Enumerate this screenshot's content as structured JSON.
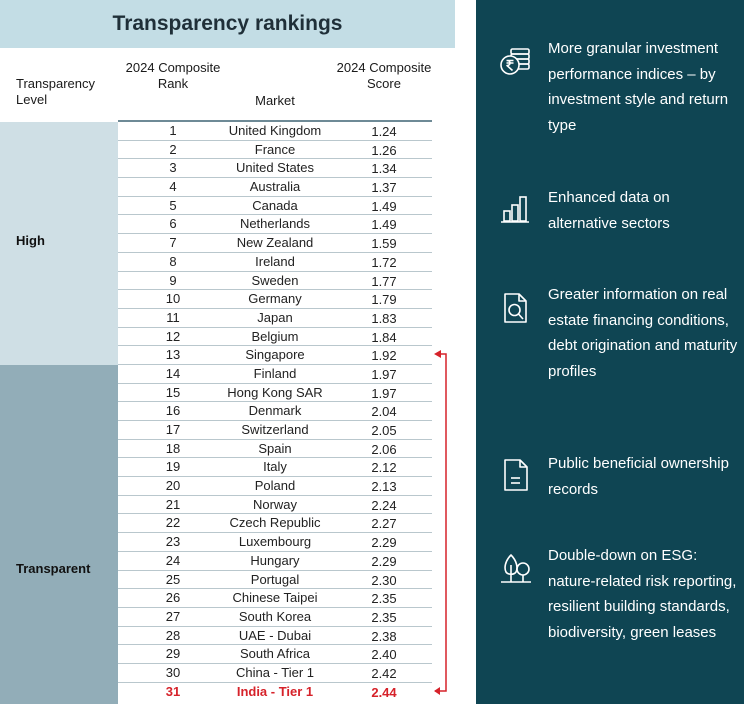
{
  "title": "Transparency rankings",
  "headers": {
    "level": "Transparency Level",
    "rank": "2024 Composite Rank",
    "market": "Market",
    "score": "2024 Composite Score"
  },
  "levels": {
    "high": "High",
    "transparent": "Transparent"
  },
  "rows": [
    {
      "rank": "1",
      "market": "United Kingdom",
      "score": "1.24"
    },
    {
      "rank": "2",
      "market": "France",
      "score": "1.26"
    },
    {
      "rank": "3",
      "market": "United States",
      "score": "1.34"
    },
    {
      "rank": "4",
      "market": "Australia",
      "score": "1.37"
    },
    {
      "rank": "5",
      "market": "Canada",
      "score": "1.49"
    },
    {
      "rank": "6",
      "market": "Netherlands",
      "score": "1.49"
    },
    {
      "rank": "7",
      "market": "New Zealand",
      "score": "1.59"
    },
    {
      "rank": "8",
      "market": "Ireland",
      "score": "1.72"
    },
    {
      "rank": "9",
      "market": "Sweden",
      "score": "1.77"
    },
    {
      "rank": "10",
      "market": "Germany",
      "score": "1.79"
    },
    {
      "rank": "11",
      "market": "Japan",
      "score": "1.83"
    },
    {
      "rank": "12",
      "market": "Belgium",
      "score": "1.84"
    },
    {
      "rank": "13",
      "market": "Singapore",
      "score": "1.92"
    },
    {
      "rank": "14",
      "market": "Finland",
      "score": "1.97"
    },
    {
      "rank": "15",
      "market": "Hong Kong SAR",
      "score": "1.97"
    },
    {
      "rank": "16",
      "market": "Denmark",
      "score": "2.04"
    },
    {
      "rank": "17",
      "market": "Switzerland",
      "score": "2.05"
    },
    {
      "rank": "18",
      "market": "Spain",
      "score": "2.06"
    },
    {
      "rank": "19",
      "market": "Italy",
      "score": "2.12"
    },
    {
      "rank": "20",
      "market": "Poland",
      "score": "2.13"
    },
    {
      "rank": "21",
      "market": "Norway",
      "score": "2.24"
    },
    {
      "rank": "22",
      "market": "Czech Republic",
      "score": "2.27"
    },
    {
      "rank": "23",
      "market": "Luxembourg",
      "score": "2.29"
    },
    {
      "rank": "24",
      "market": "Hungary",
      "score": "2.29"
    },
    {
      "rank": "25",
      "market": "Portugal",
      "score": "2.30"
    },
    {
      "rank": "26",
      "market": "Chinese Taipei",
      "score": "2.35"
    },
    {
      "rank": "27",
      "market": "South Korea",
      "score": "2.35"
    },
    {
      "rank": "28",
      "market": "UAE - Dubai",
      "score": "2.38"
    },
    {
      "rank": "29",
      "market": "South Africa",
      "score": "2.40"
    },
    {
      "rank": "30",
      "market": "China - Tier 1",
      "score": "2.42"
    },
    {
      "rank": "31",
      "market": "India - Tier 1",
      "score": "2.44",
      "highlight": true
    }
  ],
  "highlight_color": "#d6222a",
  "features": [
    {
      "icon": "coins-rupee-icon",
      "text": "More granular investment performance indices – by investment style and return type"
    },
    {
      "icon": "bar-chart-icon",
      "text": "Enhanced data on alternative sectors"
    },
    {
      "icon": "document-search-icon",
      "text": "Greater information on real estate financing conditions, debt origination and maturity profiles"
    },
    {
      "icon": "document-icon",
      "text": "Public beneficial ownership records"
    },
    {
      "icon": "trees-icon",
      "text": "Double-down on ESG: nature-related risk reporting, resilient building standards, biodiversity, green leases"
    }
  ],
  "colors": {
    "title_bg": "#c3dde5",
    "high_band": "#cfdfe5",
    "transparent_band": "#92adb8",
    "panel_bg": "#0f4553"
  }
}
